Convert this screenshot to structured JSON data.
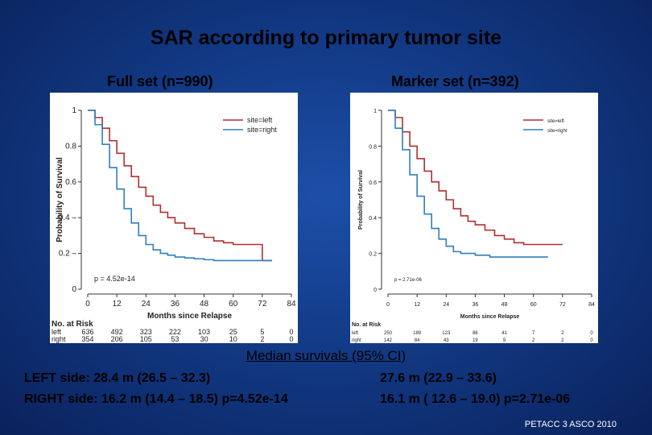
{
  "title": "SAR according to primary tumor site",
  "left_subtitle": "Full set (n=990)",
  "right_subtitle": "Marker set (n=392)",
  "colors": {
    "left": "#b03030",
    "right": "#2f7fc1"
  },
  "chart_data": [
    {
      "type": "line",
      "xlabel": "Months since Relapse",
      "ylabel": "Probability of Survival",
      "xlim": [
        0,
        84
      ],
      "ylim": [
        0,
        1
      ],
      "xticks": [
        0,
        12,
        24,
        36,
        48,
        60,
        72,
        84
      ],
      "yticks": [
        0,
        0.2,
        0.4,
        0.6,
        0.8,
        1
      ],
      "ytick_labels": [
        "0",
        "0.2 –",
        "0.4 –",
        "0.6",
        "0.8",
        "1"
      ],
      "legend": [
        "site=left",
        "site=right"
      ],
      "annotation": "p = 4.52e-14",
      "series": [
        {
          "name": "site=left",
          "x": [
            0,
            3,
            6,
            9,
            12,
            15,
            18,
            21,
            24,
            27,
            30,
            33,
            36,
            40,
            44,
            48,
            52,
            56,
            60,
            64,
            68,
            72,
            72,
            76
          ],
          "y": [
            1,
            0.96,
            0.9,
            0.83,
            0.76,
            0.69,
            0.63,
            0.57,
            0.52,
            0.47,
            0.43,
            0.4,
            0.37,
            0.34,
            0.31,
            0.29,
            0.27,
            0.26,
            0.25,
            0.25,
            0.25,
            0.25,
            0.16,
            0.16
          ]
        },
        {
          "name": "site=right",
          "x": [
            0,
            3,
            6,
            9,
            12,
            15,
            18,
            21,
            24,
            27,
            30,
            33,
            36,
            40,
            44,
            48,
            52,
            56,
            60,
            64,
            68,
            72,
            76
          ],
          "y": [
            1,
            0.92,
            0.81,
            0.68,
            0.56,
            0.45,
            0.37,
            0.3,
            0.25,
            0.22,
            0.2,
            0.19,
            0.18,
            0.175,
            0.17,
            0.165,
            0.16,
            0.16,
            0.16,
            0.16,
            0.16,
            0.16,
            0.16
          ]
        }
      ],
      "risk_table": {
        "header": "No. at Risk",
        "rows": [
          {
            "label": "left",
            "values": [
              "636",
              "492",
              "323",
              "222",
              "103",
              "25",
              "5",
              "0"
            ]
          },
          {
            "label": "right",
            "values": [
              "354",
              "206",
              "105",
              "53",
              "30",
              "10",
              "2",
              "0"
            ]
          }
        ]
      }
    },
    {
      "type": "line",
      "xlabel": "Months since Relapse",
      "ylabel": "Probability of Survival",
      "xlim": [
        0,
        84
      ],
      "ylim": [
        0,
        1
      ],
      "xticks": [
        0,
        12,
        24,
        36,
        48,
        60,
        72,
        84
      ],
      "yticks": [
        0,
        0.2,
        0.4,
        0.6,
        0.8,
        1
      ],
      "ytick_labels": [
        "0",
        "0.2",
        "0.4",
        "0.6",
        "0.8",
        "1"
      ],
      "legend": [
        "site=left",
        "site=right"
      ],
      "annotation": "p = 2.71e-06",
      "series": [
        {
          "name": "site=left",
          "x": [
            0,
            3,
            6,
            9,
            12,
            15,
            18,
            21,
            24,
            27,
            30,
            33,
            36,
            40,
            44,
            48,
            52,
            56,
            60,
            66,
            72
          ],
          "y": [
            1,
            0.96,
            0.88,
            0.8,
            0.73,
            0.66,
            0.6,
            0.55,
            0.5,
            0.45,
            0.41,
            0.38,
            0.36,
            0.33,
            0.3,
            0.28,
            0.26,
            0.25,
            0.25,
            0.25,
            0.25
          ]
        },
        {
          "name": "site=right",
          "x": [
            0,
            3,
            6,
            9,
            12,
            15,
            18,
            21,
            24,
            27,
            30,
            36,
            42,
            48,
            54,
            60,
            66
          ],
          "y": [
            1,
            0.9,
            0.78,
            0.64,
            0.52,
            0.42,
            0.34,
            0.28,
            0.24,
            0.21,
            0.2,
            0.19,
            0.18,
            0.18,
            0.18,
            0.18,
            0.18
          ]
        }
      ],
      "risk_table": {
        "header": "No. at Risk",
        "rows": [
          {
            "label": "left",
            "values": [
              "250",
              "189",
              "123",
              "86",
              "41",
              "7",
              "2",
              "0"
            ]
          },
          {
            "label": "right",
            "values": [
              "142",
              "84",
              "43",
              "19",
              "9",
              "2",
              "2",
              "0"
            ]
          }
        ]
      }
    }
  ],
  "median": {
    "title": "Median survivals (95% CI)",
    "left_row": "LEFT side:   28.4 m (26.5 – 32.3)",
    "right_row": "RIGHT side: 16.2 m (14.4 – 18.5)   p=4.52e-14",
    "marker_left": "27.6 m (22.9 – 33.6)",
    "marker_right": "16.1 m ( 12.6 – 19.0) p=2.71e-06"
  },
  "footer": "PETACC 3 ASCO 2010"
}
